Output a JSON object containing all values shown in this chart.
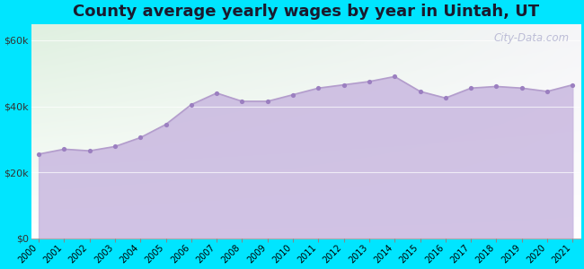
{
  "title": "County average yearly wages by year in Uintah, UT",
  "years": [
    2000,
    2001,
    2002,
    2003,
    2004,
    2005,
    2006,
    2007,
    2008,
    2009,
    2010,
    2011,
    2012,
    2013,
    2014,
    2015,
    2016,
    2017,
    2018,
    2019,
    2020,
    2021
  ],
  "values": [
    25500,
    27000,
    26500,
    27800,
    30500,
    34500,
    40500,
    44000,
    41500,
    41500,
    43500,
    45500,
    46500,
    47500,
    49000,
    44500,
    42500,
    45500,
    46000,
    45500,
    44500,
    46500
  ],
  "line_color": "#b39dcc",
  "fill_color": "#c9b8e0",
  "marker_color": "#9b7fc0",
  "background_outer": "#00e5ff",
  "title_color": "#1a1a2e",
  "title_fontsize": 13,
  "ytick_values": [
    0,
    20000,
    40000,
    60000
  ],
  "ylim": [
    0,
    65000
  ],
  "watermark": "City-Data.com",
  "grad_top_left": "#dff0e0",
  "grad_top_right": "#f5f5f8",
  "grad_bottom": "#ffffff"
}
